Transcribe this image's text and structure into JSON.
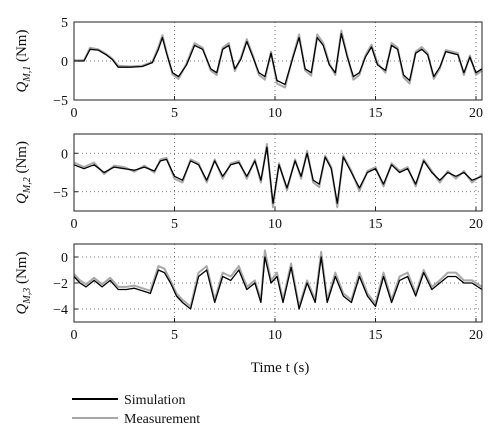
{
  "figure": {
    "xlabel": "Time t (s)",
    "legend": [
      {
        "label": "Simulation",
        "color": "#000000"
      },
      {
        "label": "Measurement",
        "color": "#a8a8a8"
      }
    ]
  },
  "chart_data": [
    {
      "type": "line",
      "ylabel": "Q_{M,1} (Nm)",
      "xlim": [
        0,
        20.3
      ],
      "ylim": [
        -5,
        5
      ],
      "xticks": [
        0,
        5,
        10,
        15,
        20
      ],
      "yticks": [
        -5,
        0,
        5
      ],
      "grid": true,
      "series": [
        {
          "name": "Simulation",
          "color": "#000000",
          "x": [
            0,
            0.5,
            0.8,
            1.2,
            1.6,
            1.9,
            2.2,
            2.8,
            3.4,
            3.9,
            4.2,
            4.4,
            4.6,
            4.9,
            5.2,
            5.6,
            6.0,
            6.4,
            6.8,
            7.1,
            7.4,
            7.7,
            8.0,
            8.3,
            8.6,
            8.9,
            9.2,
            9.5,
            9.8,
            10.1,
            10.5,
            10.9,
            11.2,
            11.5,
            11.8,
            12.1,
            12.4,
            12.7,
            13.0,
            13.3,
            13.6,
            13.9,
            14.2,
            14.5,
            14.8,
            15.1,
            15.5,
            15.8,
            16.1,
            16.4,
            16.7,
            17.0,
            17.3,
            17.6,
            17.9,
            18.2,
            18.5,
            18.8,
            19.1,
            19.4,
            19.7,
            20.0,
            20.3
          ],
          "y": [
            0,
            0,
            1.5,
            1.4,
            0.8,
            0.2,
            -0.8,
            -0.8,
            -0.7,
            -0.2,
            1.5,
            3.0,
            1.0,
            -1.5,
            -2.0,
            -0.5,
            2.0,
            1.5,
            -1.0,
            -1.5,
            1.5,
            2.0,
            -1.0,
            0.2,
            2.5,
            0.5,
            -1.5,
            -2.0,
            1.0,
            -2.5,
            -3.0,
            0.5,
            3.0,
            -1.0,
            -1.5,
            3.0,
            2.0,
            -0.5,
            -1.5,
            3.5,
            0.5,
            -2.0,
            -1.5,
            0.5,
            1.8,
            -0.5,
            -1.2,
            2.0,
            1.5,
            -1.8,
            -2.5,
            1.0,
            1.5,
            0.8,
            -2.0,
            -0.8,
            1.2,
            1.0,
            0.8,
            -1.5,
            0.5,
            -1.5,
            -1.0
          ]
        },
        {
          "name": "Measurement",
          "color": "#a8a8a8",
          "x": [
            0,
            0.5,
            0.8,
            1.2,
            1.6,
            1.9,
            2.2,
            2.8,
            3.4,
            3.9,
            4.2,
            4.4,
            4.6,
            4.9,
            5.2,
            5.6,
            6.0,
            6.4,
            6.8,
            7.1,
            7.4,
            7.7,
            8.0,
            8.3,
            8.6,
            8.9,
            9.2,
            9.5,
            9.8,
            10.1,
            10.5,
            10.9,
            11.2,
            11.5,
            11.8,
            12.1,
            12.4,
            12.7,
            13.0,
            13.3,
            13.6,
            13.9,
            14.2,
            14.5,
            14.8,
            15.1,
            15.5,
            15.8,
            16.1,
            16.4,
            16.7,
            17.0,
            17.3,
            17.6,
            17.9,
            18.2,
            18.5,
            18.8,
            19.1,
            19.4,
            19.7,
            20.0,
            20.3
          ],
          "y": [
            0.1,
            0.1,
            1.7,
            1.5,
            0.9,
            0.3,
            -0.6,
            -0.7,
            -0.6,
            -0.1,
            1.8,
            3.3,
            1.2,
            -1.7,
            -2.3,
            -0.3,
            2.3,
            1.7,
            -1.2,
            -1.8,
            1.7,
            2.3,
            -1.3,
            0.4,
            2.8,
            0.7,
            -1.8,
            -2.4,
            1.2,
            -2.9,
            -3.4,
            0.7,
            3.4,
            -1.2,
            -1.9,
            3.4,
            2.3,
            -0.3,
            -1.8,
            3.9,
            0.7,
            -2.4,
            -1.8,
            0.7,
            2.1,
            -0.3,
            -1.5,
            2.3,
            1.7,
            -2.1,
            -2.9,
            1.2,
            1.8,
            1.0,
            -2.3,
            -1.0,
            1.4,
            1.2,
            1.0,
            -1.8,
            0.7,
            -1.8,
            -1.2
          ]
        }
      ]
    },
    {
      "type": "line",
      "ylabel": "Q_{M,2} (Nm)",
      "xlim": [
        0,
        20.3
      ],
      "ylim": [
        -7.5,
        2.5
      ],
      "xticks": [
        0,
        5,
        10,
        15,
        20
      ],
      "yticks": [
        -5,
        0
      ],
      "grid": true,
      "series": [
        {
          "name": "Simulation",
          "color": "#000000",
          "x": [
            0,
            0.5,
            1.0,
            1.5,
            2.0,
            2.5,
            3.0,
            3.5,
            4.0,
            4.3,
            4.6,
            5.0,
            5.4,
            5.8,
            6.2,
            6.6,
            7.0,
            7.4,
            7.8,
            8.2,
            8.6,
            9.0,
            9.3,
            9.6,
            9.9,
            10.2,
            10.6,
            11.0,
            11.3,
            11.6,
            11.9,
            12.2,
            12.5,
            12.8,
            13.1,
            13.4,
            13.8,
            14.2,
            14.6,
            15.0,
            15.4,
            15.8,
            16.2,
            16.6,
            17.0,
            17.4,
            17.8,
            18.2,
            18.6,
            19.0,
            19.4,
            19.8,
            20.3
          ],
          "y": [
            -1.5,
            -2.0,
            -1.5,
            -2.5,
            -1.8,
            -2.0,
            -2.2,
            -1.8,
            -2.3,
            -1.0,
            -0.8,
            -3.0,
            -3.5,
            -1.0,
            -1.5,
            -3.5,
            -1.0,
            -3.0,
            -1.5,
            -1.2,
            -3.0,
            -1.0,
            -3.5,
            0.8,
            -6.5,
            -1.5,
            -4.5,
            -1.0,
            -3.0,
            0,
            -3.5,
            -4.0,
            -0.5,
            -2.0,
            -6.5,
            -0.5,
            -2.5,
            -4.5,
            -2.5,
            -2.0,
            -4.0,
            -1.5,
            -2.5,
            -2.0,
            -4.0,
            -1.0,
            -2.5,
            -3.5,
            -2.5,
            -3.0,
            -2.5,
            -3.5,
            -3.0
          ]
        },
        {
          "name": "Measurement",
          "color": "#a8a8a8",
          "x": [
            0,
            0.5,
            1.0,
            1.5,
            2.0,
            2.5,
            3.0,
            3.5,
            4.0,
            4.3,
            4.6,
            5.0,
            5.4,
            5.8,
            6.2,
            6.6,
            7.0,
            7.4,
            7.8,
            8.2,
            8.6,
            9.0,
            9.3,
            9.6,
            9.9,
            10.2,
            10.6,
            11.0,
            11.3,
            11.6,
            11.9,
            12.2,
            12.5,
            12.8,
            13.1,
            13.4,
            13.8,
            14.2,
            14.6,
            15.0,
            15.4,
            15.8,
            16.2,
            16.6,
            17.0,
            17.4,
            17.8,
            18.2,
            18.6,
            19.0,
            19.4,
            19.8,
            20.3
          ],
          "y": [
            -1.2,
            -1.8,
            -1.2,
            -2.7,
            -1.6,
            -1.8,
            -2.4,
            -1.6,
            -2.5,
            -0.8,
            -0.6,
            -3.3,
            -3.8,
            -0.8,
            -1.3,
            -3.8,
            -0.8,
            -3.3,
            -1.3,
            -1.0,
            -3.3,
            -0.8,
            -3.8,
            1.2,
            -7.0,
            -1.3,
            -4.8,
            -0.8,
            -3.3,
            0.3,
            -3.8,
            -4.4,
            -0.3,
            -1.8,
            -7.0,
            -0.3,
            -2.3,
            -4.9,
            -2.3,
            -1.8,
            -4.3,
            -1.3,
            -2.3,
            -1.8,
            -4.3,
            -0.8,
            -2.3,
            -3.8,
            -2.3,
            -3.3,
            -2.3,
            -3.8,
            -2.8
          ]
        }
      ]
    },
    {
      "type": "line",
      "ylabel": "Q_{M,3} (Nm)",
      "xlim": [
        0,
        20.3
      ],
      "ylim": [
        -5,
        1
      ],
      "xticks": [
        0,
        5,
        10,
        15,
        20
      ],
      "yticks": [
        -4,
        -2,
        0
      ],
      "grid": true,
      "series": [
        {
          "name": "Simulation",
          "color": "#000000",
          "x": [
            0,
            0.3,
            0.6,
            1.0,
            1.4,
            1.8,
            2.2,
            2.6,
            3.0,
            3.4,
            3.8,
            4.2,
            4.5,
            4.8,
            5.1,
            5.4,
            5.8,
            6.2,
            6.6,
            7.0,
            7.4,
            7.8,
            8.2,
            8.6,
            9.0,
            9.3,
            9.5,
            9.8,
            10.1,
            10.4,
            10.8,
            11.2,
            11.6,
            12.0,
            12.3,
            12.6,
            13.0,
            13.4,
            13.8,
            14.2,
            14.6,
            15.0,
            15.4,
            15.8,
            16.2,
            16.6,
            17.0,
            17.4,
            17.8,
            18.2,
            18.6,
            19.0,
            19.4,
            19.8,
            20.3
          ],
          "y": [
            -1.5,
            -2.0,
            -2.3,
            -1.8,
            -2.3,
            -1.8,
            -2.5,
            -2.5,
            -2.4,
            -2.6,
            -2.8,
            -1.0,
            -1.2,
            -2.0,
            -3.0,
            -3.5,
            -4.0,
            -1.5,
            -1.0,
            -3.5,
            -1.5,
            -1.8,
            -1.0,
            -2.5,
            -2.0,
            -3.5,
            0.0,
            -2.0,
            -1.5,
            -3.5,
            -0.8,
            -4.0,
            -2.0,
            -3.5,
            0.0,
            -3.5,
            -1.5,
            -3.0,
            -3.5,
            -1.5,
            -3.0,
            -3.8,
            -1.5,
            -3.5,
            -1.8,
            -1.5,
            -3.0,
            -1.2,
            -2.5,
            -2.0,
            -1.5,
            -1.5,
            -2.0,
            -2.0,
            -2.5
          ]
        },
        {
          "name": "Measurement",
          "color": "#a8a8a8",
          "x": [
            0,
            0.3,
            0.6,
            1.0,
            1.4,
            1.8,
            2.2,
            2.6,
            3.0,
            3.4,
            3.8,
            4.2,
            4.5,
            4.8,
            5.1,
            5.4,
            5.8,
            6.2,
            6.6,
            7.0,
            7.4,
            7.8,
            8.2,
            8.6,
            9.0,
            9.3,
            9.5,
            9.8,
            10.1,
            10.4,
            10.8,
            11.2,
            11.6,
            12.0,
            12.3,
            12.6,
            13.0,
            13.4,
            13.8,
            14.2,
            14.6,
            15.0,
            15.4,
            15.8,
            16.2,
            16.6,
            17.0,
            17.4,
            17.8,
            18.2,
            18.6,
            19.0,
            19.4,
            19.8,
            20.3
          ],
          "y": [
            -1.3,
            -1.8,
            -2.1,
            -1.6,
            -2.1,
            -1.6,
            -2.3,
            -2.3,
            -2.2,
            -2.4,
            -2.6,
            -0.7,
            -0.9,
            -1.8,
            -2.8,
            -3.3,
            -3.8,
            -1.2,
            -0.7,
            -3.3,
            -1.2,
            -1.5,
            -0.7,
            -2.3,
            -1.8,
            -3.3,
            0.5,
            -1.8,
            -1.2,
            -3.3,
            -0.5,
            -3.8,
            -1.8,
            -3.3,
            0.4,
            -3.3,
            -1.2,
            -2.8,
            -3.3,
            -1.2,
            -2.8,
            -3.6,
            -1.2,
            -3.3,
            -1.5,
            -1.2,
            -2.8,
            -1.0,
            -2.3,
            -1.8,
            -1.2,
            -1.2,
            -1.8,
            -1.8,
            -2.3
          ]
        }
      ]
    }
  ]
}
